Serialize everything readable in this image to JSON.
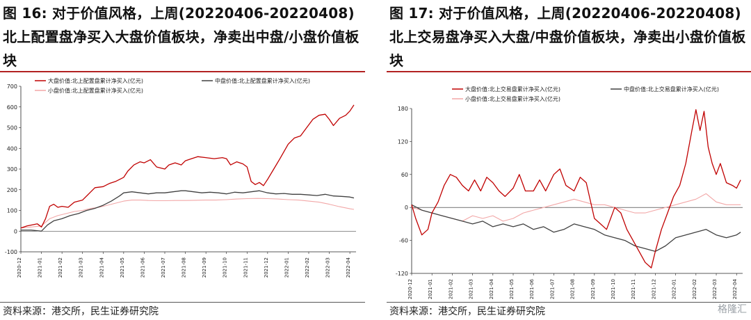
{
  "figure_left": {
    "title": "图 16: 对于价值风格，上周(20220406-20220408)北上配置盘净买入大盘价值板块，净卖出中盘/小盘价值板块",
    "source": "资料来源：港交所，民生证券研究院"
  },
  "figure_right": {
    "title": "图 17: 对于价值风格，上周(20220406-20220408)北上交易盘净买入大盘/中盘价值板块，净卖出小盘价值板块",
    "source": "资料来源：港交所，民生证券研究院"
  },
  "watermark": "格隆汇",
  "colors": {
    "large": "#c00000",
    "mid": "#404040",
    "small": "#f2a7a7",
    "rule": "#b22222"
  },
  "chart_data": [
    {
      "type": "line",
      "categories": [
        "2020-12",
        "2021-01",
        "2021-02",
        "2021-03",
        "2021-04",
        "2021-05",
        "2021-06",
        "2021-07",
        "2021-08",
        "2021-09",
        "2021-10",
        "2021-11",
        "2021-12",
        "2022-01",
        "2022-02",
        "2022-03",
        "2022-04"
      ],
      "yticks": [
        -100,
        0,
        100,
        200,
        300,
        400,
        500,
        600,
        700
      ],
      "ylim": [
        -100,
        700
      ],
      "legend_position": "top",
      "series": [
        {
          "name": "大盘价值:北上配置盘累计净买入(亿元)",
          "color": "#c00000",
          "x": [
            0,
            0.3,
            0.8,
            1.0,
            1.2,
            1.4,
            1.6,
            1.8,
            2.0,
            2.3,
            2.6,
            3.0,
            3.3,
            3.6,
            4.0,
            4.3,
            4.6,
            5.0,
            5.2,
            5.5,
            5.8,
            6.0,
            6.3,
            6.6,
            7.0,
            7.2,
            7.5,
            7.8,
            8.0,
            8.3,
            8.6,
            9.0,
            9.4,
            9.8,
            10.0,
            10.2,
            10.5,
            10.8,
            11.0,
            11.2,
            11.4,
            11.6,
            11.8,
            12.0,
            12.3,
            12.6,
            13.0,
            13.3,
            13.6,
            13.9,
            14.2,
            14.5,
            14.8,
            15.0,
            15.2,
            15.5,
            15.8,
            16.0,
            16.2
          ],
          "y": [
            15,
            25,
            35,
            20,
            60,
            120,
            130,
            115,
            120,
            115,
            140,
            150,
            180,
            210,
            215,
            230,
            240,
            260,
            290,
            320,
            335,
            330,
            345,
            310,
            300,
            320,
            330,
            320,
            340,
            350,
            360,
            355,
            350,
            355,
            350,
            320,
            335,
            325,
            310,
            240,
            225,
            235,
            220,
            250,
            300,
            350,
            420,
            450,
            460,
            500,
            540,
            560,
            565,
            540,
            510,
            545,
            560,
            580,
            610
          ]
        },
        {
          "name": "中盘价值:北上配置盘累计净买入(亿元)",
          "color": "#404040",
          "x": [
            0,
            0.5,
            1.0,
            1.3,
            1.6,
            2.0,
            2.4,
            2.8,
            3.2,
            3.6,
            4.0,
            4.4,
            4.8,
            5.0,
            5.4,
            5.8,
            6.2,
            6.6,
            7.0,
            7.4,
            7.8,
            8.0,
            8.4,
            8.8,
            9.2,
            9.6,
            10.0,
            10.4,
            10.8,
            11.2,
            11.6,
            12.0,
            12.4,
            12.8,
            13.2,
            13.6,
            14.0,
            14.4,
            14.8,
            15.2,
            15.6,
            16.0,
            16.2
          ],
          "y": [
            5,
            5,
            0,
            30,
            50,
            60,
            75,
            85,
            100,
            110,
            125,
            145,
            170,
            185,
            190,
            185,
            180,
            185,
            185,
            190,
            195,
            195,
            190,
            185,
            188,
            185,
            180,
            188,
            185,
            190,
            195,
            185,
            180,
            182,
            178,
            178,
            175,
            172,
            178,
            170,
            168,
            165,
            160
          ]
        },
        {
          "name": "小盘价值:北上配置盘累计净买入(亿元)",
          "color": "#f2a7a7",
          "x": [
            0,
            0.5,
            1.0,
            1.4,
            1.8,
            2.2,
            2.6,
            3.0,
            3.4,
            3.8,
            4.2,
            4.6,
            5.0,
            5.4,
            5.8,
            6.2,
            6.6,
            7.0,
            7.5,
            8.0,
            8.5,
            9.0,
            9.5,
            10.0,
            10.5,
            11.0,
            11.5,
            12.0,
            12.5,
            13.0,
            13.5,
            14.0,
            14.5,
            15.0,
            15.5,
            16.0,
            16.2
          ],
          "y": [
            15,
            20,
            25,
            60,
            75,
            85,
            95,
            100,
            110,
            115,
            125,
            135,
            145,
            150,
            150,
            148,
            147,
            147,
            148,
            148,
            149,
            150,
            150,
            152,
            155,
            157,
            158,
            157,
            155,
            152,
            150,
            145,
            140,
            130,
            118,
            108,
            105
          ]
        }
      ]
    },
    {
      "type": "line",
      "categories": [
        "2020-12",
        "2021-01",
        "2021-02",
        "2021-03",
        "2021-04",
        "2021-05",
        "2021-06",
        "2021-07",
        "2021-08",
        "2021-09",
        "2021-10",
        "2021-11",
        "2021-12",
        "2022-01",
        "2022-02",
        "2022-03",
        "2022-04"
      ],
      "yticks": [
        -120,
        -60,
        0,
        60,
        120,
        180
      ],
      "ylim": [
        -120,
        180
      ],
      "legend_position": "top",
      "series": [
        {
          "name": "大盘价值:北上交易盘累计净买入(亿元)",
          "color": "#c00000",
          "x": [
            0,
            0.2,
            0.5,
            0.8,
            1.0,
            1.3,
            1.6,
            1.9,
            2.2,
            2.5,
            2.8,
            3.1,
            3.4,
            3.7,
            4.0,
            4.3,
            4.6,
            5.0,
            5.3,
            5.6,
            6.0,
            6.3,
            6.6,
            7.0,
            7.3,
            7.6,
            8.0,
            8.3,
            8.6,
            9.0,
            9.3,
            9.6,
            10.0,
            10.3,
            10.6,
            10.9,
            11.2,
            11.5,
            11.8,
            12.0,
            12.3,
            12.6,
            12.9,
            13.2,
            13.5,
            13.8,
            14.0,
            14.2,
            14.4,
            14.6,
            14.8,
            15.0,
            15.2,
            15.5,
            15.8,
            16.0,
            16.2
          ],
          "y": [
            5,
            -20,
            -50,
            -40,
            -10,
            10,
            40,
            60,
            55,
            40,
            30,
            50,
            30,
            55,
            45,
            30,
            20,
            35,
            60,
            30,
            30,
            50,
            30,
            60,
            70,
            40,
            30,
            55,
            45,
            -20,
            -30,
            -40,
            0,
            -10,
            -40,
            -60,
            -80,
            -100,
            -110,
            -80,
            -40,
            -10,
            20,
            40,
            80,
            140,
            178,
            140,
            175,
            110,
            80,
            60,
            80,
            45,
            40,
            35,
            50
          ]
        },
        {
          "name": "中盘价值:北上交易盘累计净买入(亿元)",
          "color": "#404040",
          "x": [
            0,
            0.5,
            1.0,
            1.5,
            2.0,
            2.5,
            3.0,
            3.5,
            4.0,
            4.5,
            5.0,
            5.5,
            6.0,
            6.5,
            7.0,
            7.5,
            8.0,
            8.5,
            9.0,
            9.5,
            10.0,
            10.5,
            11.0,
            11.5,
            12.0,
            12.5,
            13.0,
            13.5,
            14.0,
            14.5,
            15.0,
            15.5,
            16.0,
            16.2
          ],
          "y": [
            5,
            -5,
            -10,
            -15,
            -20,
            -25,
            -30,
            -25,
            -35,
            -30,
            -35,
            -30,
            -40,
            -35,
            -45,
            -40,
            -30,
            -35,
            -40,
            -50,
            -55,
            -60,
            -70,
            -75,
            -80,
            -70,
            -55,
            -50,
            -45,
            -40,
            -50,
            -55,
            -50,
            -45
          ]
        },
        {
          "name": "小盘价值:北上交易盘累计净买入(亿元)",
          "color": "#f2a7a7",
          "x": [
            0,
            0.5,
            1.0,
            1.5,
            2.0,
            2.5,
            3.0,
            3.5,
            4.0,
            4.5,
            5.0,
            5.5,
            6.0,
            6.5,
            7.0,
            7.5,
            8.0,
            8.5,
            9.0,
            9.5,
            10.0,
            10.5,
            11.0,
            11.5,
            12.0,
            12.5,
            13.0,
            13.5,
            14.0,
            14.5,
            15.0,
            15.5,
            16.0,
            16.2
          ],
          "y": [
            0,
            -5,
            -10,
            -15,
            -20,
            -25,
            -15,
            -20,
            -15,
            -25,
            -20,
            -10,
            -5,
            0,
            5,
            10,
            15,
            10,
            5,
            5,
            0,
            -5,
            -10,
            -10,
            -5,
            0,
            5,
            10,
            15,
            25,
            10,
            5,
            5,
            5
          ]
        }
      ]
    }
  ]
}
